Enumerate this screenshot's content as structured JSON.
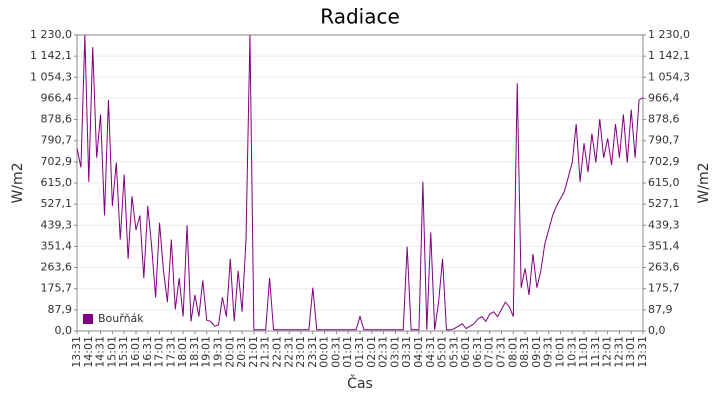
{
  "chart_data": {
    "type": "line",
    "title": "Radiace",
    "x_label": "Čas",
    "y_label": "W/m2",
    "categories": [
      "13:31",
      null,
      null,
      "14:01",
      null,
      null,
      "14:31",
      null,
      null,
      "15:01",
      null,
      null,
      "15:31",
      null,
      null,
      "16:01",
      null,
      null,
      "16:31",
      null,
      null,
      "17:01",
      null,
      null,
      "17:31",
      null,
      null,
      "18:01",
      null,
      null,
      "18:31",
      null,
      null,
      "19:01",
      null,
      null,
      "19:31",
      null,
      null,
      "20:01",
      null,
      null,
      "20:31",
      null,
      null,
      "21:01",
      null,
      null,
      "21:31",
      null,
      null,
      "22:01",
      null,
      null,
      "22:31",
      null,
      null,
      "23:01",
      null,
      null,
      "23:31",
      null,
      null,
      "00:01",
      null,
      null,
      "00:31",
      null,
      null,
      "01:01",
      null,
      null,
      "01:31",
      null,
      null,
      "02:01",
      null,
      null,
      "02:31",
      null,
      null,
      "03:01",
      null,
      null,
      "03:31",
      null,
      null,
      "04:01",
      null,
      null,
      "04:31",
      null,
      null,
      "05:01",
      null,
      null,
      "05:31",
      null,
      null,
      "06:01",
      null,
      null,
      "06:31",
      null,
      null,
      "07:01",
      null,
      null,
      "07:31",
      null,
      null,
      "08:01",
      null,
      null,
      "08:31",
      null,
      null,
      "09:01",
      null,
      null,
      "09:31",
      null,
      null,
      "10:01",
      null,
      null,
      "10:31",
      null,
      null,
      "11:01",
      null,
      null,
      "11:31",
      null,
      null,
      "12:01",
      null,
      null,
      "12:31",
      null,
      null,
      "13:01",
      null,
      null,
      "13:31"
    ],
    "series": [
      {
        "name": "Bouřňák",
        "color": "#800080",
        "values": [
          760,
          680,
          1230,
          620,
          1180,
          720,
          900,
          480,
          960,
          520,
          700,
          380,
          650,
          300,
          560,
          420,
          480,
          220,
          520,
          350,
          140,
          450,
          250,
          120,
          380,
          90,
          220,
          60,
          440,
          40,
          150,
          60,
          210,
          45,
          40,
          20,
          25,
          140,
          60,
          300,
          40,
          250,
          80,
          380,
          1230,
          5,
          5,
          5,
          5,
          220,
          5,
          5,
          5,
          5,
          5,
          5,
          5,
          5,
          5,
          5,
          180,
          5,
          5,
          5,
          5,
          5,
          5,
          5,
          5,
          5,
          5,
          5,
          60,
          5,
          5,
          5,
          5,
          5,
          5,
          5,
          5,
          5,
          5,
          5,
          350,
          5,
          5,
          5,
          620,
          5,
          410,
          5,
          120,
          300,
          5,
          5,
          10,
          20,
          30,
          10,
          20,
          30,
          50,
          60,
          40,
          70,
          80,
          60,
          90,
          120,
          100,
          60,
          1030,
          180,
          260,
          150,
          320,
          180,
          250,
          360,
          420,
          480,
          520,
          550,
          580,
          640,
          700,
          860,
          620,
          780,
          660,
          820,
          700,
          880,
          720,
          800,
          690,
          860,
          720,
          900,
          700,
          920,
          720,
          960,
          970
        ]
      }
    ],
    "ylim": [
      0,
      1230
    ],
    "yticks": [
      {
        "value": 0,
        "label": "0,0"
      },
      {
        "value": 87.9,
        "label": "87,9"
      },
      {
        "value": 175.7,
        "label": "175,7"
      },
      {
        "value": 263.6,
        "label": "263,6"
      },
      {
        "value": 351.4,
        "label": "351,4"
      },
      {
        "value": 439.3,
        "label": "439,3"
      },
      {
        "value": 527.1,
        "label": "527,1"
      },
      {
        "value": 615,
        "label": "615,0"
      },
      {
        "value": 702.9,
        "label": "702,9"
      },
      {
        "value": 790.7,
        "label": "790,7"
      },
      {
        "value": 878.6,
        "label": "878,6"
      },
      {
        "value": 966.4,
        "label": "966,4"
      },
      {
        "value": 1054.3,
        "label": "1 054,3"
      },
      {
        "value": 1142.1,
        "label": "1 142,1"
      },
      {
        "value": 1230,
        "label": "1 230,0"
      }
    ],
    "grid": true
  }
}
